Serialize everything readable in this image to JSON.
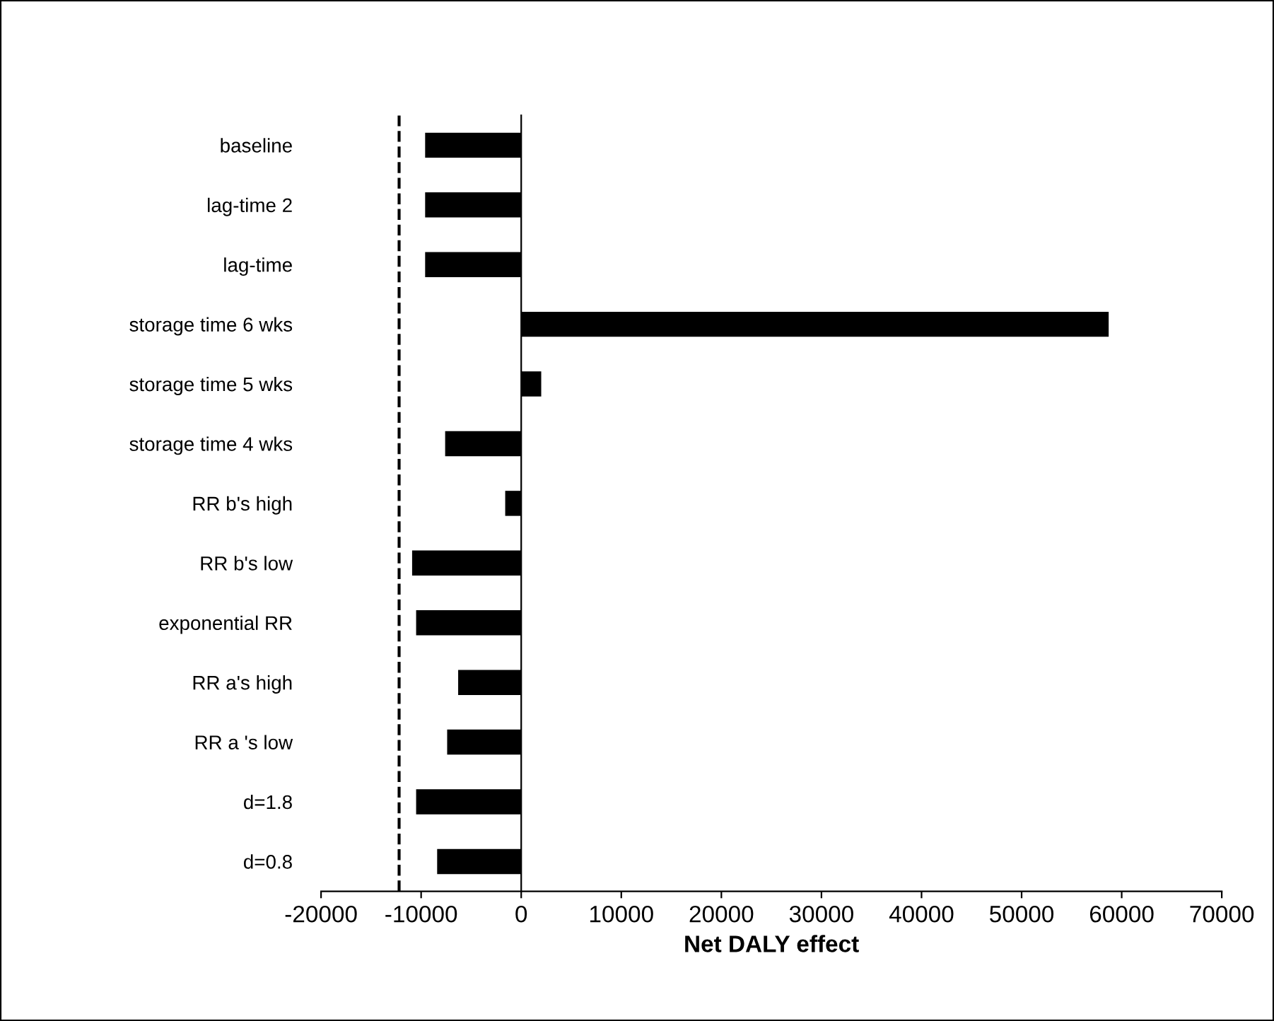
{
  "chart_data": {
    "type": "bar",
    "orientation": "horizontal",
    "xlabel": "Net DALY effect",
    "categories": [
      "baseline",
      "lag-time 2",
      "lag-time",
      "storage time 6 wks",
      "storage time 5 wks",
      "storage time 4 wks",
      "RR b's high",
      "RR b's low",
      "exponential RR",
      "RR a's high",
      "RR a 's low",
      "d=1.8",
      "d=0.8"
    ],
    "values": [
      -9600,
      -9600,
      -9600,
      58700,
      2000,
      -7600,
      -1600,
      -10900,
      -10500,
      -6300,
      -7400,
      -10500,
      -8400
    ],
    "color": "#000000",
    "xlim": [
      -20000,
      70000
    ],
    "xticks": [
      -20000,
      -10000,
      0,
      10000,
      20000,
      30000,
      40000,
      50000,
      60000,
      70000
    ],
    "ref_lines": [
      {
        "axis": "x",
        "value": -12200,
        "line_style": "dashed",
        "color": "#000000"
      }
    ],
    "legend": false
  }
}
